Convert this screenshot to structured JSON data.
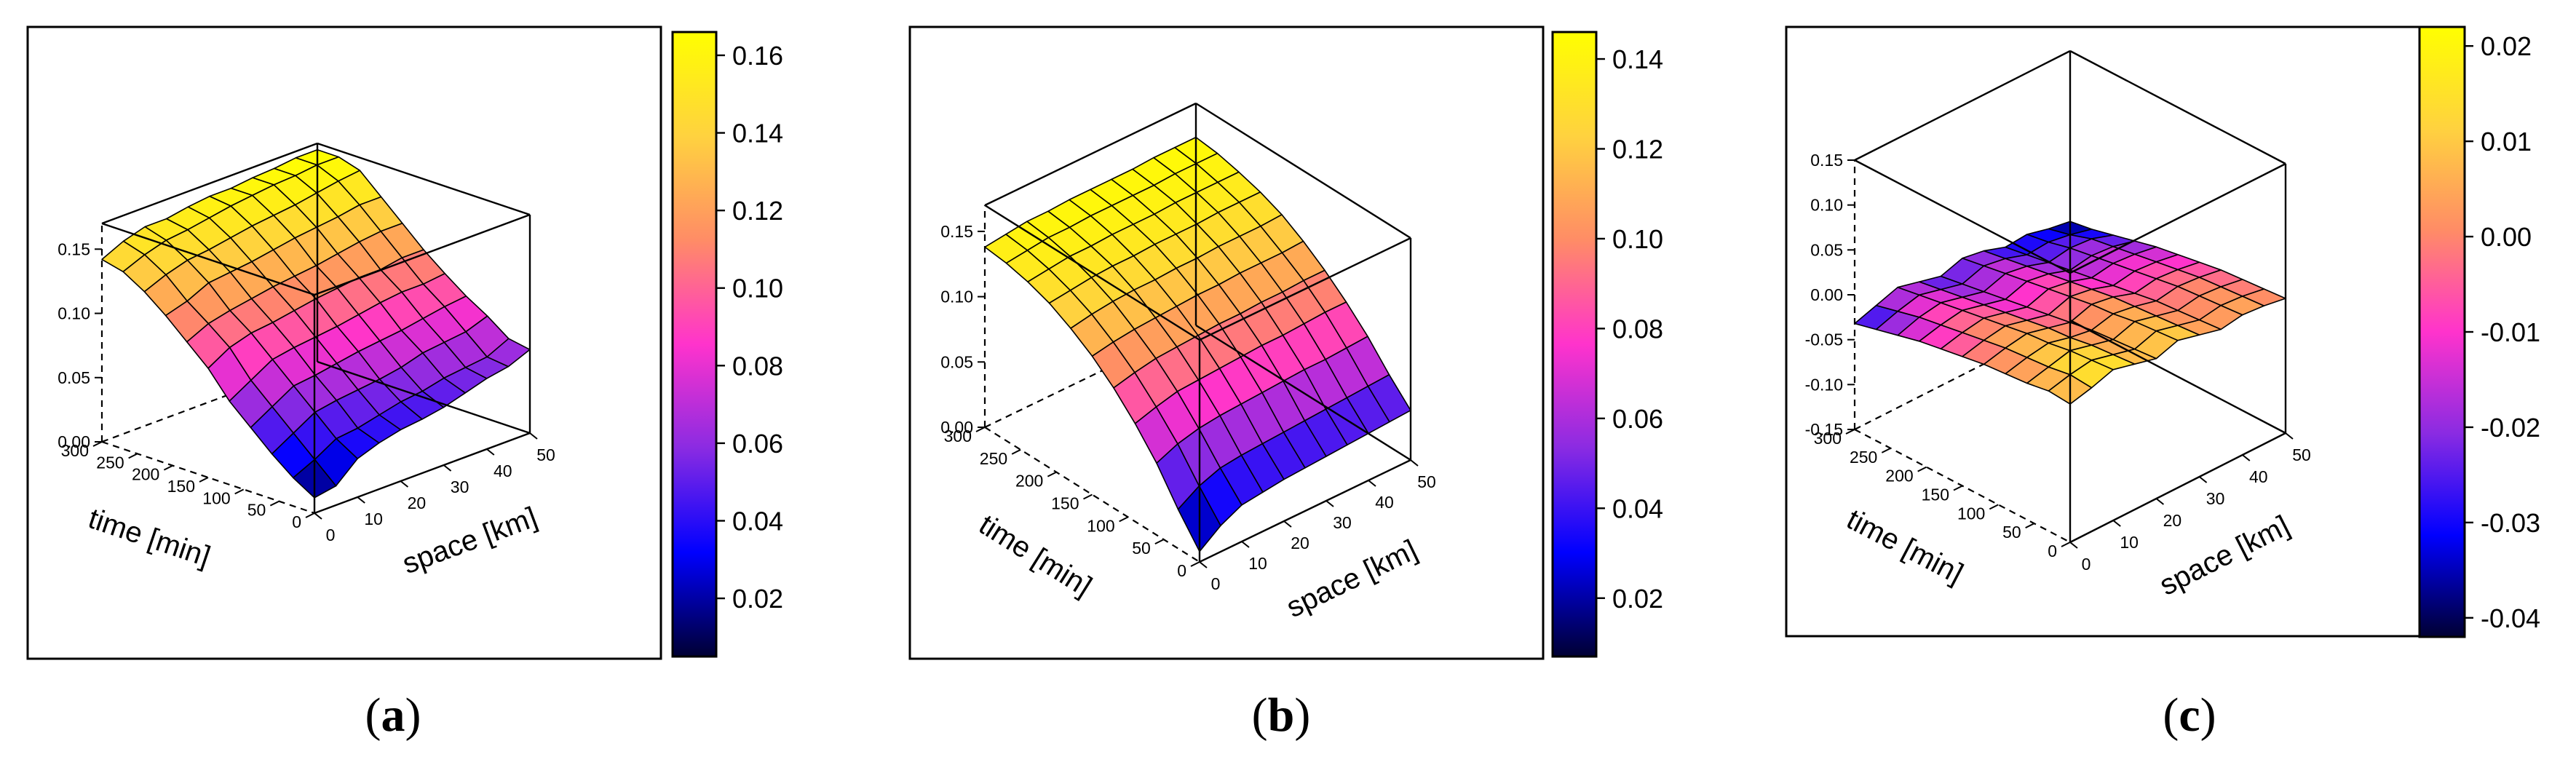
{
  "panels": [
    {
      "letter": "a"
    },
    {
      "letter": "b"
    },
    {
      "letter": "c"
    }
  ],
  "chart_data": [
    {
      "type": "surface3d",
      "panel": "a",
      "xlabel": "space [km]",
      "ylabel": "time [min]",
      "zlabel": "",
      "x": [
        0,
        5,
        10,
        15,
        20,
        25,
        30,
        35,
        40,
        45,
        50
      ],
      "y": [
        0,
        30,
        60,
        90,
        120,
        150,
        180,
        210,
        240,
        270,
        300
      ],
      "x_ticks": [
        0,
        10,
        20,
        30,
        40,
        50
      ],
      "y_ticks": [
        0,
        50,
        100,
        150,
        200,
        250,
        300
      ],
      "z_ticks": [
        "0.00",
        "0.05",
        "0.10",
        "0.15"
      ],
      "zlim": [
        0,
        0.17
      ],
      "z": [
        [
          0.012,
          0.015,
          0.03,
          0.036,
          0.04,
          0.042,
          0.045,
          0.05,
          0.055,
          0.058,
          0.065
        ],
        [
          0.022,
          0.03,
          0.04,
          0.042,
          0.046,
          0.05,
          0.052,
          0.056,
          0.058,
          0.06,
          0.068
        ],
        [
          0.035,
          0.045,
          0.055,
          0.058,
          0.06,
          0.062,
          0.065,
          0.07,
          0.072,
          0.074,
          0.08
        ],
        [
          0.05,
          0.06,
          0.07,
          0.072,
          0.075,
          0.078,
          0.08,
          0.082,
          0.085,
          0.088,
          0.09
        ],
        [
          0.065,
          0.075,
          0.085,
          0.088,
          0.09,
          0.092,
          0.095,
          0.098,
          0.1,
          0.1,
          0.102
        ],
        [
          0.085,
          0.095,
          0.1,
          0.102,
          0.105,
          0.108,
          0.11,
          0.112,
          0.112,
          0.115,
          0.115
        ],
        [
          0.1,
          0.108,
          0.112,
          0.115,
          0.118,
          0.12,
          0.122,
          0.125,
          0.128,
          0.13,
          0.13
        ],
        [
          0.115,
          0.12,
          0.128,
          0.13,
          0.132,
          0.135,
          0.138,
          0.14,
          0.142,
          0.145,
          0.145
        ],
        [
          0.128,
          0.135,
          0.14,
          0.142,
          0.145,
          0.148,
          0.15,
          0.152,
          0.155,
          0.158,
          0.16
        ],
        [
          0.138,
          0.145,
          0.15,
          0.152,
          0.155,
          0.158,
          0.16,
          0.162,
          0.163,
          0.165,
          0.165
        ],
        [
          0.142,
          0.15,
          0.155,
          0.155,
          0.158,
          0.16,
          0.16,
          0.162,
          0.163,
          0.165,
          0.165
        ]
      ],
      "colorbar": {
        "min": 0.005,
        "max": 0.166,
        "ticks": [
          "0.02",
          "0.04",
          "0.06",
          "0.08",
          "0.10",
          "0.12",
          "0.14",
          "0.16"
        ]
      }
    },
    {
      "type": "surface3d",
      "panel": "b",
      "xlabel": "space [km]",
      "ylabel": "time [min]",
      "zlabel": "",
      "x": [
        0,
        5,
        10,
        15,
        20,
        25,
        30,
        35,
        40,
        45,
        50
      ],
      "y": [
        0,
        30,
        60,
        90,
        120,
        150,
        180,
        210,
        240,
        270,
        300
      ],
      "x_ticks": [
        0,
        10,
        20,
        30,
        40,
        50
      ],
      "y_ticks": [
        0,
        50,
        100,
        150,
        200,
        250,
        300
      ],
      "z_ticks": [
        "0.00",
        "0.05",
        "0.10",
        "0.15"
      ],
      "zlim": [
        0,
        0.17
      ],
      "z": [
        [
          0.008,
          0.02,
          0.028,
          0.03,
          0.032,
          0.033,
          0.034,
          0.035,
          0.036,
          0.037,
          0.038
        ],
        [
          0.03,
          0.04,
          0.046,
          0.048,
          0.049,
          0.05,
          0.051,
          0.052,
          0.053,
          0.054,
          0.055
        ],
        [
          0.055,
          0.062,
          0.066,
          0.068,
          0.069,
          0.07,
          0.071,
          0.072,
          0.072,
          0.073,
          0.074
        ],
        [
          0.075,
          0.08,
          0.084,
          0.085,
          0.086,
          0.087,
          0.088,
          0.088,
          0.089,
          0.09,
          0.09
        ],
        [
          0.092,
          0.096,
          0.099,
          0.1,
          0.101,
          0.102,
          0.102,
          0.103,
          0.103,
          0.104,
          0.104
        ],
        [
          0.106,
          0.109,
          0.111,
          0.112,
          0.113,
          0.114,
          0.114,
          0.115,
          0.115,
          0.115,
          0.116
        ],
        [
          0.117,
          0.12,
          0.122,
          0.123,
          0.123,
          0.124,
          0.124,
          0.125,
          0.125,
          0.125,
          0.126
        ],
        [
          0.126,
          0.128,
          0.13,
          0.131,
          0.131,
          0.132,
          0.132,
          0.132,
          0.133,
          0.133,
          0.133
        ],
        [
          0.132,
          0.134,
          0.136,
          0.136,
          0.137,
          0.137,
          0.137,
          0.138,
          0.138,
          0.138,
          0.138
        ],
        [
          0.136,
          0.138,
          0.14,
          0.14,
          0.141,
          0.141,
          0.141,
          0.141,
          0.142,
          0.142,
          0.142
        ],
        [
          0.138,
          0.14,
          0.142,
          0.142,
          0.143,
          0.143,
          0.143,
          0.143,
          0.144,
          0.144,
          0.144
        ]
      ],
      "colorbar": {
        "min": 0.007,
        "max": 0.146,
        "ticks": [
          "0.02",
          "0.04",
          "0.06",
          "0.08",
          "0.10",
          "0.12",
          "0.14"
        ]
      }
    },
    {
      "type": "surface3d",
      "panel": "c",
      "xlabel": "space [km]",
      "ylabel": "time [min]",
      "zlabel": "",
      "x": [
        0,
        5,
        10,
        15,
        20,
        25,
        30,
        35,
        40,
        45,
        50
      ],
      "y": [
        0,
        30,
        60,
        90,
        120,
        150,
        180,
        210,
        240,
        270,
        300
      ],
      "x_ticks": [
        0,
        10,
        20,
        30,
        40,
        50
      ],
      "y_ticks": [
        0,
        50,
        100,
        150,
        200,
        250,
        300
      ],
      "z_ticks": [
        "0.15",
        "0.10",
        "0.05",
        "0.00",
        "-0.05",
        "-0.10",
        "-0.15"
      ],
      "zlim": [
        -0.15,
        0.15
      ],
      "z": [
        [
          0.004,
          0.01,
          0.018,
          0.012,
          0.006,
          0.014,
          0.008,
          0.002,
          0.006,
          0.004,
          0.0
        ],
        [
          0.006,
          0.012,
          0.016,
          0.01,
          0.004,
          0.012,
          0.006,
          0.0,
          0.004,
          0.002,
          -0.002
        ],
        [
          0.002,
          0.008,
          0.014,
          0.008,
          0.002,
          0.01,
          0.004,
          -0.002,
          0.002,
          0.0,
          -0.004
        ],
        [
          0.0,
          0.006,
          0.01,
          0.004,
          0.0,
          0.006,
          0.002,
          -0.004,
          0.0,
          -0.002,
          -0.006
        ],
        [
          -0.002,
          0.004,
          0.008,
          0.002,
          -0.004,
          0.004,
          0.0,
          -0.008,
          -0.004,
          -0.006,
          -0.01
        ],
        [
          -0.006,
          0.0,
          0.004,
          -0.002,
          -0.008,
          0.0,
          -0.004,
          -0.012,
          -0.008,
          -0.01,
          -0.014
        ],
        [
          -0.01,
          -0.004,
          0.0,
          -0.006,
          -0.012,
          -0.004,
          -0.008,
          -0.016,
          -0.012,
          -0.014,
          -0.018
        ],
        [
          -0.014,
          -0.008,
          -0.004,
          -0.01,
          -0.016,
          -0.008,
          -0.012,
          -0.02,
          -0.016,
          -0.018,
          -0.024
        ],
        [
          -0.02,
          -0.012,
          -0.008,
          -0.014,
          -0.02,
          -0.012,
          -0.016,
          -0.024,
          -0.02,
          -0.022,
          -0.03
        ],
        [
          -0.026,
          -0.018,
          -0.012,
          -0.018,
          -0.024,
          -0.016,
          -0.02,
          -0.028,
          -0.026,
          -0.03,
          -0.036
        ],
        [
          -0.032,
          -0.024,
          -0.016,
          -0.022,
          -0.028,
          -0.02,
          -0.024,
          -0.032,
          -0.03,
          -0.036,
          -0.04
        ]
      ],
      "colorbar": {
        "min": -0.042,
        "max": 0.022,
        "ticks": [
          "-0.04",
          "-0.03",
          "-0.02",
          "-0.01",
          "0.00",
          "0.01",
          "0.02"
        ]
      }
    }
  ],
  "colors": {
    "colormap_stops": [
      "#000033",
      "#0000ff",
      "#8a2be2",
      "#ff33cc",
      "#ff8c66",
      "#ffd23f",
      "#ffff00"
    ],
    "frame": "#000000",
    "mesh": "#000000"
  }
}
